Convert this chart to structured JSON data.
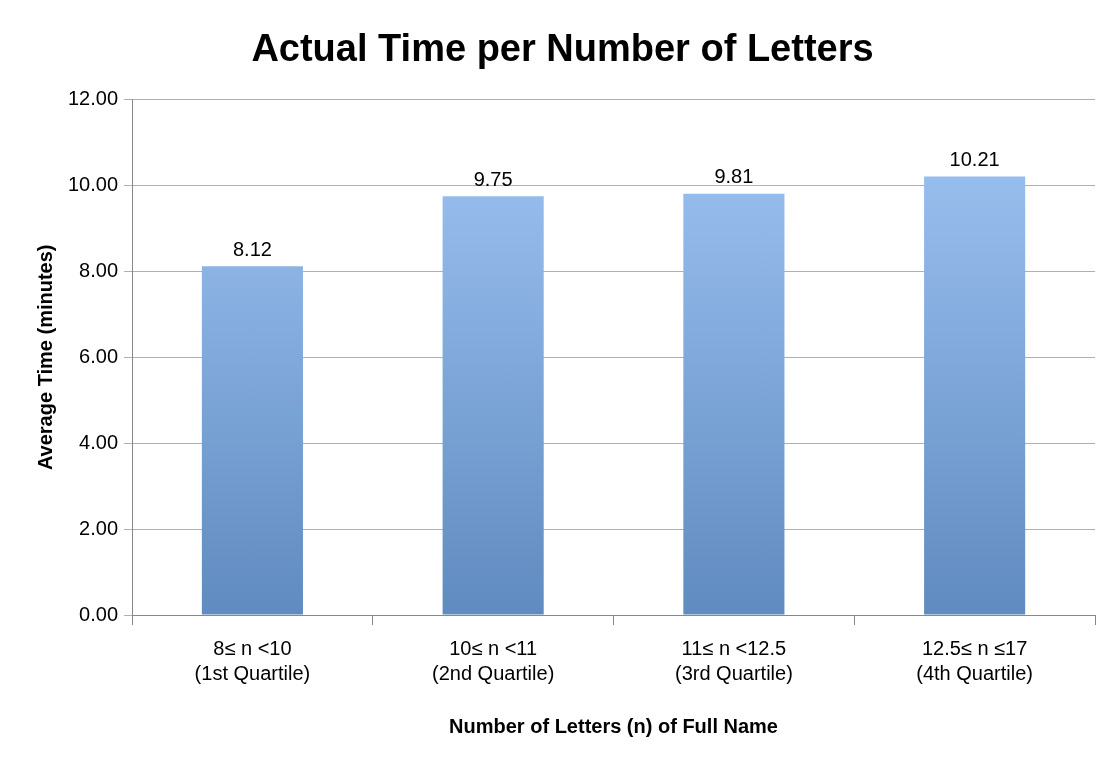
{
  "chart_data": {
    "type": "bar",
    "title": "Actual Time per Number of Letters",
    "xlabel": "Number of Letters (n) of Full Name",
    "ylabel": "Average Time (minutes)",
    "categories": [
      "8≤ n <10\n(1st Quartile)",
      "10≤ n <11\n(2nd Quartile)",
      "11≤ n <12.5\n(3rd Quartile)",
      "12.5≤ n ≤17\n(4th Quartile)"
    ],
    "values": [
      8.12,
      9.75,
      9.81,
      10.21
    ],
    "color": "#78aef0",
    "ylim": [
      0,
      12
    ],
    "yticks": [
      {
        "value": 0,
        "label": "0.00"
      },
      {
        "value": 2,
        "label": "2.00"
      },
      {
        "value": 4,
        "label": "4.00"
      },
      {
        "value": 6,
        "label": "6.00"
      },
      {
        "value": 8,
        "label": "8.00"
      },
      {
        "value": 10,
        "label": "10.00"
      },
      {
        "value": 12,
        "label": "12.00"
      }
    ],
    "grid": "y",
    "legend": false,
    "data_labels": true
  }
}
